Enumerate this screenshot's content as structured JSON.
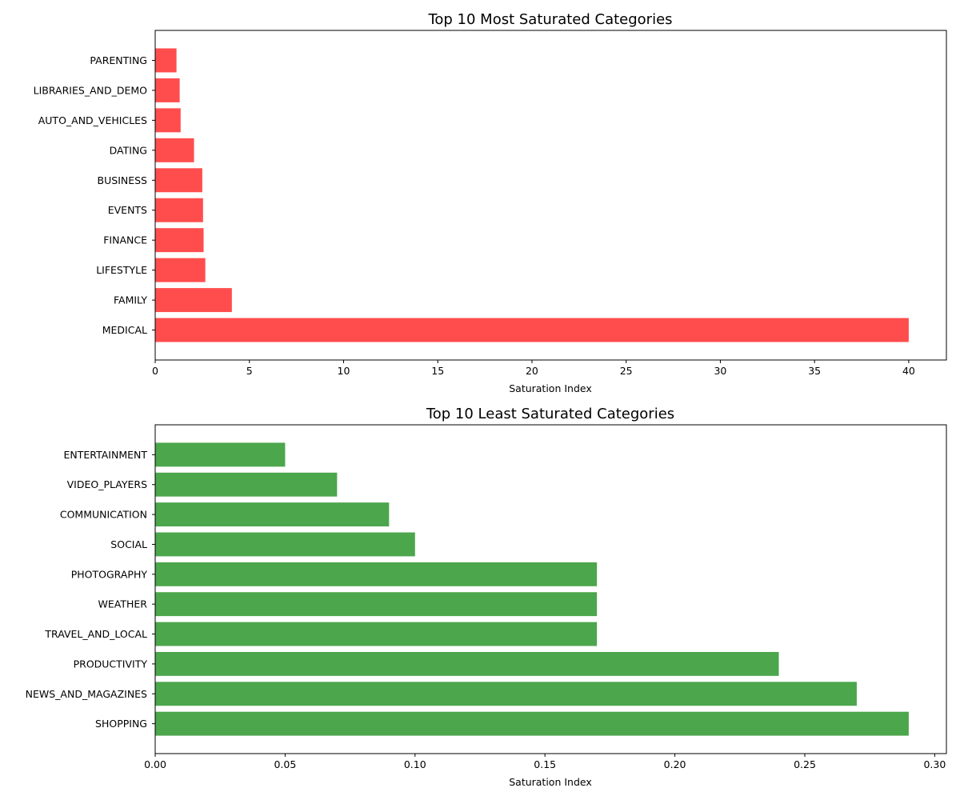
{
  "chart_data": [
    {
      "type": "bar",
      "orientation": "horizontal",
      "title": "Top 10 Most Saturated Categories",
      "xlabel": "Saturation Index",
      "ylabel": "",
      "xlim": [
        0,
        42
      ],
      "xticks": [
        0,
        5,
        10,
        15,
        20,
        25,
        30,
        35,
        40
      ],
      "xtick_labels": [
        "0",
        "5",
        "10",
        "15",
        "20",
        "25",
        "30",
        "35",
        "40"
      ],
      "categories": [
        "MEDICAL",
        "FAMILY",
        "LIFESTYLE",
        "FINANCE",
        "EVENTS",
        "BUSINESS",
        "DATING",
        "AUTO_AND_VEHICLES",
        "LIBRARIES_AND_DEMO",
        "PARENTING"
      ],
      "values": [
        40.0,
        4.07,
        2.66,
        2.57,
        2.54,
        2.5,
        2.06,
        1.35,
        1.3,
        1.13
      ],
      "color": "#ff4d4d",
      "grid": false
    },
    {
      "type": "bar",
      "orientation": "horizontal",
      "title": "Top 10 Least Saturated Categories",
      "xlabel": "Saturation Index",
      "ylabel": "",
      "xlim": [
        0,
        0.3045
      ],
      "xticks": [
        0,
        0.05,
        0.1,
        0.15,
        0.2,
        0.25,
        0.3
      ],
      "xtick_labels": [
        "0.00",
        "0.05",
        "0.10",
        "0.15",
        "0.20",
        "0.25",
        "0.30"
      ],
      "categories": [
        "SHOPPING",
        "NEWS_AND_MAGAZINES",
        "PRODUCTIVITY",
        "TRAVEL_AND_LOCAL",
        "WEATHER",
        "PHOTOGRAPHY",
        "SOCIAL",
        "COMMUNICATION",
        "VIDEO_PLAYERS",
        "ENTERTAINMENT"
      ],
      "values": [
        0.29,
        0.27,
        0.24,
        0.17,
        0.17,
        0.17,
        0.1,
        0.09,
        0.07,
        0.05
      ],
      "color": "#4ca64c",
      "grid": false
    }
  ]
}
